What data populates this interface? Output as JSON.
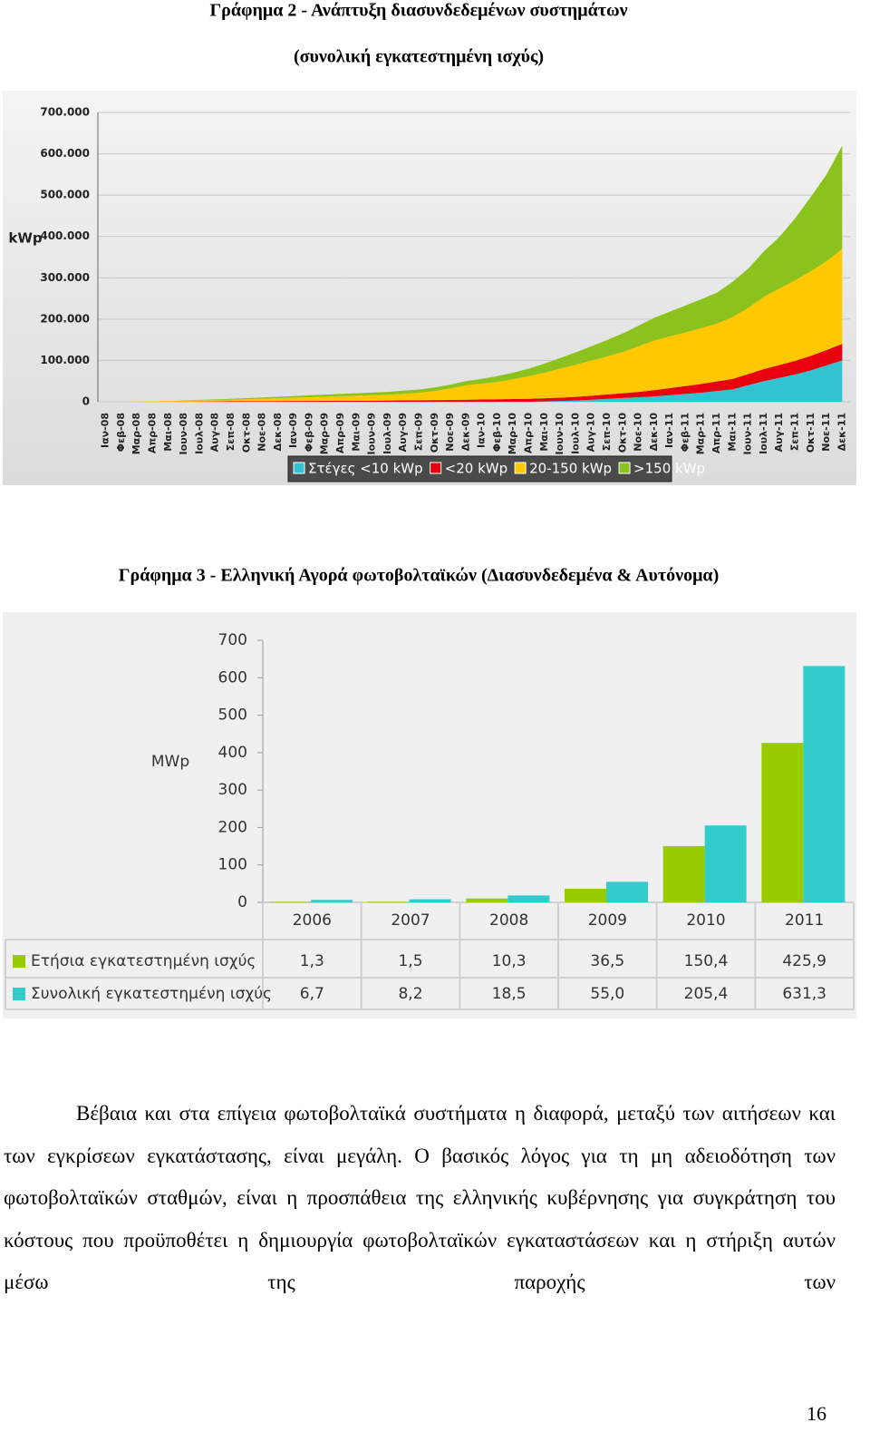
{
  "chart_data": [
    {
      "type": "area",
      "title": "Γράφημα 2 - Ανάπτυξη διασυνδεδεμένων συστημάτων",
      "subtitle": "(συνολική εγκατεστημένη ισχύς)",
      "y_label": "kWp",
      "categories": [
        "Ιαν-08",
        "Φεβ-08",
        "Μαρ-08",
        "Απρ-08",
        "Μαι-08",
        "Ιουν-08",
        "Ιουλ-08",
        "Αυγ-08",
        "Σεπ-08",
        "Οκτ-08",
        "Νοε-08",
        "Δεκ-08",
        "Ιαν-09",
        "Φεβ-09",
        "Μαρ-09",
        "Απρ-09",
        "Μαι-09",
        "Ιουν-09",
        "Ιουλ-09",
        "Αυγ-09",
        "Σεπ-09",
        "Οκτ-09",
        "Νοε-09",
        "Δεκ-09",
        "Ιαν-10",
        "Φεβ-10",
        "Μαρ-10",
        "Απρ-10",
        "Μαι-10",
        "Ιουν-10",
        "Ιουλ-10",
        "Αυγ-10",
        "Σεπ-10",
        "Οκτ-10",
        "Νοε-10",
        "Δεκ-10",
        "Ιαν-11",
        "Φεβ-11",
        "Μαρ-11",
        "Απρ-11",
        "Μαι-11",
        "Ιουν-11",
        "Ιουλ-11",
        "Αυγ-11",
        "Σεπ-11",
        "Οκτ-11",
        "Νοε-11",
        "Δεκ-11"
      ],
      "stacked": true,
      "series": [
        {
          "name": "Στέγες <10 kWp",
          "color": "#33c3d0",
          "values": [
            0,
            0,
            0,
            0,
            0,
            0,
            0,
            0,
            0,
            0,
            0,
            0,
            0,
            0,
            0,
            0,
            0,
            0,
            0,
            0,
            0,
            0,
            0,
            0,
            0,
            0,
            0,
            0,
            1000,
            2000,
            3000,
            5000,
            7000,
            9000,
            11000,
            13000,
            16000,
            19000,
            22000,
            26000,
            30000,
            40000,
            50000,
            58000,
            66000,
            76000,
            88000,
            100000
          ]
        },
        {
          "name": "<20 kWp",
          "color": "#e8000e",
          "values": [
            0,
            0,
            0,
            0,
            200,
            400,
            600,
            800,
            1000,
            1200,
            1400,
            1600,
            1800,
            2000,
            2200,
            2400,
            2600,
            2800,
            3000,
            3300,
            3600,
            4000,
            4500,
            5000,
            5500,
            6000,
            6500,
            7000,
            7500,
            8000,
            8700,
            9500,
            10500,
            11500,
            13000,
            15000,
            17000,
            19000,
            21000,
            23000,
            25000,
            27000,
            29000,
            31000,
            33000,
            35000,
            37000,
            40000
          ]
        },
        {
          "name": "20-150 kWp",
          "color": "#ffc800",
          "values": [
            0,
            0,
            500,
            1000,
            1500,
            2000,
            3000,
            3500,
            4000,
            5000,
            6000,
            7000,
            8000,
            9000,
            10000,
            11000,
            12000,
            13000,
            14000,
            16000,
            18000,
            22000,
            28000,
            35000,
            38000,
            42000,
            48000,
            55000,
            62000,
            70000,
            78000,
            85000,
            92000,
            100000,
            110000,
            120000,
            125000,
            130000,
            135000,
            140000,
            150000,
            160000,
            175000,
            185000,
            195000,
            205000,
            215000,
            230000
          ]
        },
        {
          "name": ">150 kWp",
          "color": "#8cc21e",
          "values": [
            0,
            0,
            0,
            0,
            0,
            500,
            1000,
            1500,
            2000,
            2500,
            3000,
            3500,
            4000,
            4500,
            5000,
            5500,
            6000,
            6500,
            7000,
            7500,
            8000,
            8500,
            9000,
            10000,
            12000,
            14000,
            16000,
            18000,
            22000,
            26000,
            30000,
            35000,
            40000,
            45000,
            50000,
            55000,
            60000,
            65000,
            70000,
            75000,
            85000,
            95000,
            110000,
            125000,
            150000,
            180000,
            210000,
            250000
          ]
        }
      ],
      "ylim": [
        0,
        700000
      ],
      "yticks": [
        0,
        {
          "value": 100000,
          "label": "100.000"
        },
        {
          "value": 200000,
          "label": "200.000"
        },
        {
          "value": 300000,
          "label": "300.000"
        },
        {
          "value": 400000,
          "label": "400.000"
        },
        {
          "value": 500000,
          "label": "500.000"
        },
        {
          "value": 600000,
          "label": "600.000"
        },
        {
          "value": 700000,
          "label": "700.000"
        }
      ],
      "grid": true,
      "legend": "bottom"
    },
    {
      "type": "bar",
      "title": "Γράφημα 3 - Ελληνική Αγορά φωτοβολταϊκών (Διασυνδεδεμένα & Αυτόνομα)",
      "y_label": "MWp",
      "categories": [
        "2006",
        "2007",
        "2008",
        "2009",
        "2010",
        "2011"
      ],
      "series": [
        {
          "name": "Ετήσια εγκατεστημένη ισχύς",
          "color": "#99cc00",
          "values": [
            1.3,
            1.5,
            10.3,
            36.5,
            150.4,
            425.9
          ],
          "value_labels": [
            "1,3",
            "1,5",
            "10,3",
            "36,5",
            "150,4",
            "425,9"
          ]
        },
        {
          "name": "Συνολική εγκατεστημένη ισχύς",
          "color": "#33cccc",
          "values": [
            6.7,
            8.2,
            18.5,
            55.0,
            205.4,
            631.3
          ],
          "value_labels": [
            "6,7",
            "8,2",
            "18,5",
            "55,0",
            "205,4",
            "631,3"
          ]
        }
      ],
      "ylim": [
        0,
        700
      ],
      "yticks": [
        0,
        100,
        200,
        300,
        400,
        500,
        600,
        700
      ],
      "data_table": true
    }
  ],
  "paragraph": "Βέβαια και στα επίγεια φωτοβολταϊκά συστήματα η διαφορά, μεταξύ των αιτήσεων και των εγκρίσεων εγκατάστασης, είναι μεγάλη. Ο βασικός λόγος για τη μη αδειοδότηση των φωτοβολταϊκών σταθμών, είναι η προσπάθεια της ελληνικής κυβέρνησης για συγκράτηση του κόστους που προϋποθέτει η δημιουργία φωτοβολταϊκών εγκαταστάσεων και η στήριξη αυτών μέσω της παροχής των",
  "page_number": "16"
}
